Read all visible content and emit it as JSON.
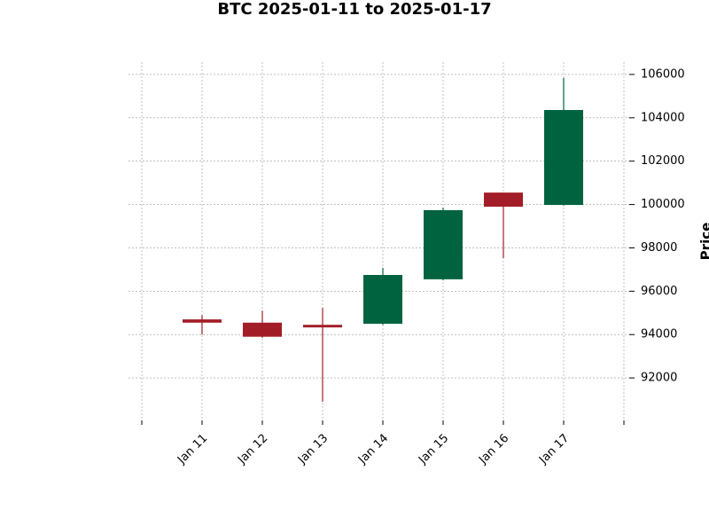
{
  "chart_data": {
    "type": "candlestick",
    "title": "BTC 2025-01-11 to 2025-01-17",
    "y_label": "Price",
    "categories": [
      "Jan 11",
      "Jan 12",
      "Jan 13",
      "Jan 14",
      "Jan 15",
      "Jan 16",
      "Jan 17"
    ],
    "open": [
      94700,
      94550,
      94450,
      94500,
      96550,
      100550,
      99980
    ],
    "high": [
      94900,
      95100,
      95230,
      97080,
      99860,
      100550,
      105840
    ],
    "low": [
      94000,
      93850,
      90900,
      94450,
      96500,
      97530,
      99950
    ],
    "close": [
      94550,
      93900,
      94330,
      96750,
      99740,
      99900,
      104360
    ],
    "up_color": "#006340",
    "down_color": "#a21d27",
    "ylim": [
      90040,
      106570
    ],
    "yticks": [
      92000,
      94000,
      96000,
      98000,
      100000,
      102000,
      104000,
      106000
    ],
    "grid": true,
    "y_axis_side": "right"
  }
}
